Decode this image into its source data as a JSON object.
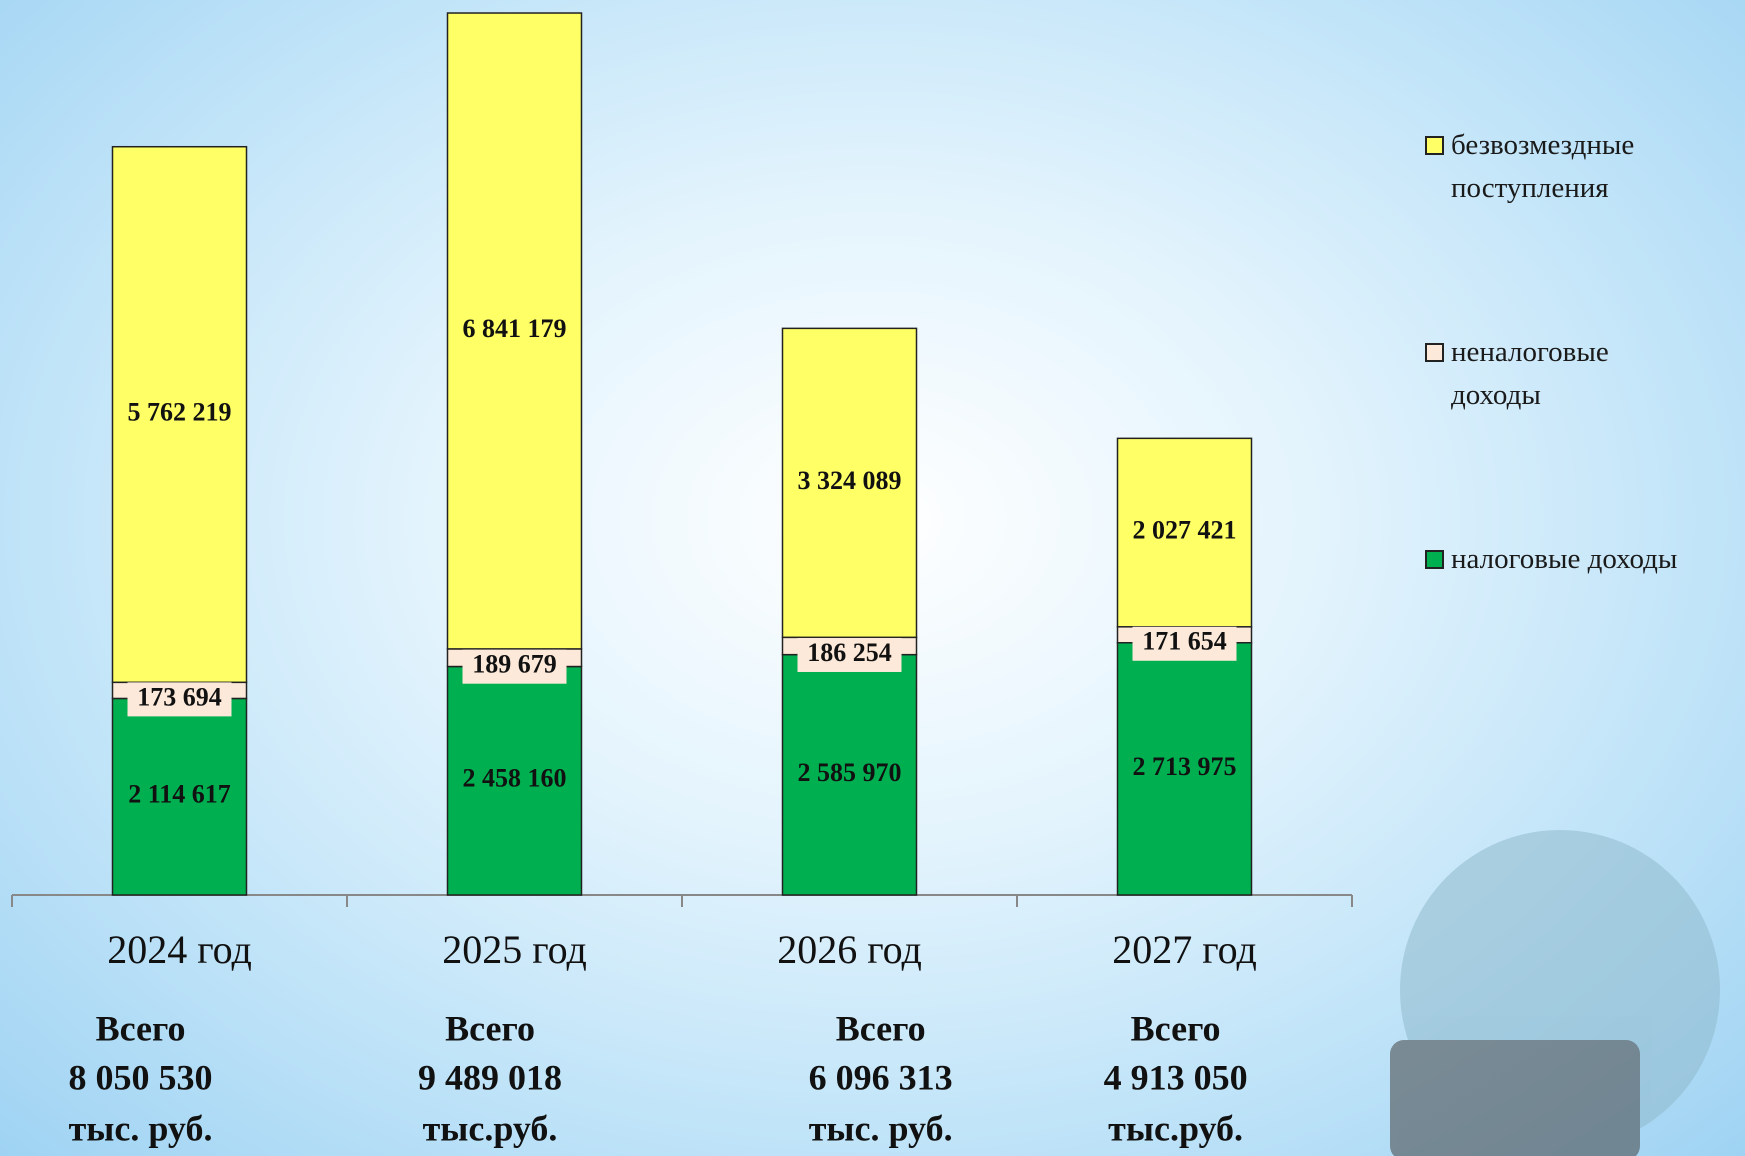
{
  "chart_data": {
    "type": "stacked_bar",
    "categories": [
      "2024 год",
      "2025 год",
      "2026 год",
      "2027 год"
    ],
    "series": [
      {
        "name": "налоговые доходы",
        "color": "#00b050",
        "values": [
          2114617,
          2458160,
          2585970,
          2713975
        ],
        "value_labels": [
          "2 114 617",
          "2 458 160",
          "2 585 970",
          "2 713 975"
        ]
      },
      {
        "name": "неналоговые доходы",
        "color": "#fde9d9",
        "values": [
          173694,
          189679,
          186254,
          171654
        ],
        "value_labels": [
          "173 694",
          "189 679",
          "186 254",
          "171 654"
        ]
      },
      {
        "name": "безвозмездные поступления",
        "color": "#ffff66",
        "values": [
          5762219,
          6841179,
          3324089,
          2027421
        ],
        "value_labels": [
          "5 762 219",
          "6 841 179",
          "3 324 089",
          "2 027 421"
        ]
      }
    ],
    "totals_heading": "Всего",
    "totals": [
      "8 050 530",
      "9 489 018",
      "6 096 313",
      "4 913 050"
    ],
    "totals_units": [
      "тыс. руб.",
      "тыс.руб.",
      "тыс. руб.",
      "тыс.руб."
    ],
    "ylim": [
      0,
      9500000
    ],
    "legend": "right"
  }
}
